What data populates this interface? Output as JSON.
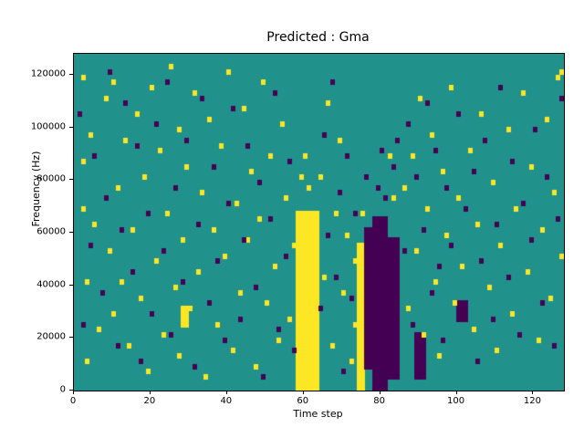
{
  "chart_data": {
    "type": "heatmap",
    "title": "Predicted : Gma",
    "xlabel": "Time step",
    "ylabel": "Frequency (Hz)",
    "x_range": [
      0,
      128
    ],
    "y_range": [
      0,
      128000
    ],
    "x_ticks": [
      0,
      20,
      40,
      60,
      80,
      100,
      120
    ],
    "y_ticks": [
      0,
      20000,
      40000,
      60000,
      80000,
      100000,
      120000
    ],
    "grid": {
      "cols": 128,
      "rows": 64
    },
    "legend": "none",
    "colors": {
      "background": "#21918c",
      "high": "#fde725",
      "low": "#440154",
      "frame": "#000000"
    },
    "regions": [
      {
        "color": "high",
        "x": [
          58,
          63
        ],
        "bins": [
          0,
          33
        ]
      },
      {
        "color": "high",
        "x": [
          74,
          75
        ],
        "bins": [
          0,
          27
        ]
      },
      {
        "color": "high",
        "x": [
          28,
          29
        ],
        "bins": [
          12,
          15
        ]
      },
      {
        "color": "low",
        "x": [
          76,
          77
        ],
        "bins": [
          4,
          30
        ]
      },
      {
        "color": "low",
        "x": [
          78,
          81
        ],
        "bins": [
          0,
          32
        ]
      },
      {
        "color": "low",
        "x": [
          82,
          84
        ],
        "bins": [
          2,
          28
        ]
      },
      {
        "color": "low",
        "x": [
          89,
          91
        ],
        "bins": [
          2,
          10
        ]
      },
      {
        "color": "low",
        "x": [
          100,
          102
        ],
        "bins": [
          13,
          16
        ]
      }
    ],
    "cells": {
      "high": [
        [
          2,
          59
        ],
        [
          2,
          43
        ],
        [
          2,
          34
        ],
        [
          3,
          20
        ],
        [
          3,
          5
        ],
        [
          4,
          48
        ],
        [
          5,
          31
        ],
        [
          6,
          11
        ],
        [
          8,
          55
        ],
        [
          9,
          26
        ],
        [
          10,
          58
        ],
        [
          10,
          14
        ],
        [
          11,
          38
        ],
        [
          12,
          20
        ],
        [
          13,
          47
        ],
        [
          14,
          8
        ],
        [
          15,
          30
        ],
        [
          16,
          52
        ],
        [
          17,
          17
        ],
        [
          18,
          40
        ],
        [
          19,
          3
        ],
        [
          20,
          57
        ],
        [
          21,
          24
        ],
        [
          22,
          45
        ],
        [
          23,
          10
        ],
        [
          24,
          33
        ],
        [
          25,
          61
        ],
        [
          26,
          19
        ],
        [
          27,
          49
        ],
        [
          27,
          6
        ],
        [
          28,
          28
        ],
        [
          29,
          42
        ],
        [
          30,
          15
        ],
        [
          31,
          56
        ],
        [
          32,
          22
        ],
        [
          33,
          37
        ],
        [
          34,
          2
        ],
        [
          35,
          51
        ],
        [
          36,
          30
        ],
        [
          37,
          12
        ],
        [
          38,
          46
        ],
        [
          39,
          25
        ],
        [
          40,
          60
        ],
        [
          41,
          7
        ],
        [
          42,
          35
        ],
        [
          43,
          18
        ],
        [
          44,
          53
        ],
        [
          45,
          28
        ],
        [
          46,
          41
        ],
        [
          47,
          4
        ],
        [
          48,
          32
        ],
        [
          49,
          58
        ],
        [
          50,
          16
        ],
        [
          51,
          44
        ],
        [
          52,
          23
        ],
        [
          53,
          9
        ],
        [
          54,
          50
        ],
        [
          55,
          36
        ],
        [
          56,
          13
        ],
        [
          57,
          27
        ],
        [
          59,
          40
        ],
        [
          60,
          44
        ],
        [
          61,
          38
        ],
        [
          64,
          40
        ],
        [
          65,
          21
        ],
        [
          66,
          54
        ],
        [
          67,
          8
        ],
        [
          68,
          33
        ],
        [
          69,
          47
        ],
        [
          70,
          18
        ],
        [
          71,
          29
        ],
        [
          72,
          5
        ],
        [
          73,
          24
        ],
        [
          73,
          12
        ],
        [
          75,
          33
        ],
        [
          82,
          44
        ],
        [
          83,
          36
        ],
        [
          86,
          38
        ],
        [
          87,
          15
        ],
        [
          88,
          44
        ],
        [
          89,
          26
        ],
        [
          90,
          55
        ],
        [
          91,
          10
        ],
        [
          92,
          34
        ],
        [
          93,
          48
        ],
        [
          94,
          20
        ],
        [
          95,
          6
        ],
        [
          96,
          41
        ],
        [
          97,
          29
        ],
        [
          98,
          57
        ],
        [
          99,
          16
        ],
        [
          100,
          36
        ],
        [
          101,
          23
        ],
        [
          103,
          45
        ],
        [
          104,
          11
        ],
        [
          105,
          31
        ],
        [
          106,
          52
        ],
        [
          108,
          19
        ],
        [
          109,
          39
        ],
        [
          110,
          7
        ],
        [
          111,
          27
        ],
        [
          113,
          49
        ],
        [
          114,
          14
        ],
        [
          115,
          34
        ],
        [
          117,
          56
        ],
        [
          118,
          22
        ],
        [
          119,
          42
        ],
        [
          121,
          9
        ],
        [
          122,
          30
        ],
        [
          123,
          51
        ],
        [
          124,
          17
        ],
        [
          125,
          37
        ],
        [
          126,
          59
        ],
        [
          127,
          25
        ],
        [
          127,
          60
        ]
      ],
      "low": [
        [
          1,
          52
        ],
        [
          2,
          12
        ],
        [
          4,
          27
        ],
        [
          5,
          44
        ],
        [
          7,
          18
        ],
        [
          8,
          36
        ],
        [
          9,
          60
        ],
        [
          11,
          8
        ],
        [
          12,
          30
        ],
        [
          13,
          54
        ],
        [
          15,
          22
        ],
        [
          16,
          46
        ],
        [
          17,
          5
        ],
        [
          19,
          33
        ],
        [
          20,
          14
        ],
        [
          21,
          50
        ],
        [
          23,
          26
        ],
        [
          24,
          58
        ],
        [
          25,
          10
        ],
        [
          26,
          38
        ],
        [
          28,
          20
        ],
        [
          29,
          47
        ],
        [
          31,
          4
        ],
        [
          32,
          31
        ],
        [
          33,
          55
        ],
        [
          35,
          16
        ],
        [
          36,
          42
        ],
        [
          37,
          24
        ],
        [
          39,
          9
        ],
        [
          40,
          35
        ],
        [
          41,
          53
        ],
        [
          43,
          13
        ],
        [
          44,
          28
        ],
        [
          45,
          46
        ],
        [
          47,
          19
        ],
        [
          48,
          39
        ],
        [
          49,
          2
        ],
        [
          51,
          32
        ],
        [
          52,
          56
        ],
        [
          53,
          11
        ],
        [
          55,
          25
        ],
        [
          56,
          43
        ],
        [
          57,
          7
        ],
        [
          64,
          15
        ],
        [
          65,
          48
        ],
        [
          66,
          29
        ],
        [
          67,
          58
        ],
        [
          68,
          21
        ],
        [
          69,
          37
        ],
        [
          70,
          3
        ],
        [
          71,
          44
        ],
        [
          72,
          17
        ],
        [
          73,
          33
        ],
        [
          76,
          40
        ],
        [
          79,
          38
        ],
        [
          80,
          45
        ],
        [
          81,
          36
        ],
        [
          83,
          42
        ],
        [
          84,
          47
        ],
        [
          86,
          26
        ],
        [
          87,
          50
        ],
        [
          88,
          12
        ],
        [
          89,
          40
        ],
        [
          90,
          6
        ],
        [
          91,
          30
        ],
        [
          92,
          54
        ],
        [
          93,
          18
        ],
        [
          94,
          45
        ],
        [
          95,
          23
        ],
        [
          96,
          9
        ],
        [
          97,
          38
        ],
        [
          98,
          27
        ],
        [
          100,
          52
        ],
        [
          101,
          15
        ],
        [
          102,
          34
        ],
        [
          104,
          41
        ],
        [
          105,
          5
        ],
        [
          106,
          24
        ],
        [
          107,
          47
        ],
        [
          109,
          13
        ],
        [
          110,
          31
        ],
        [
          111,
          57
        ],
        [
          113,
          21
        ],
        [
          114,
          43
        ],
        [
          116,
          10
        ],
        [
          117,
          35
        ],
        [
          119,
          28
        ],
        [
          120,
          49
        ],
        [
          122,
          16
        ],
        [
          123,
          40
        ],
        [
          125,
          8
        ],
        [
          126,
          32
        ],
        [
          127,
          55
        ]
      ]
    }
  }
}
